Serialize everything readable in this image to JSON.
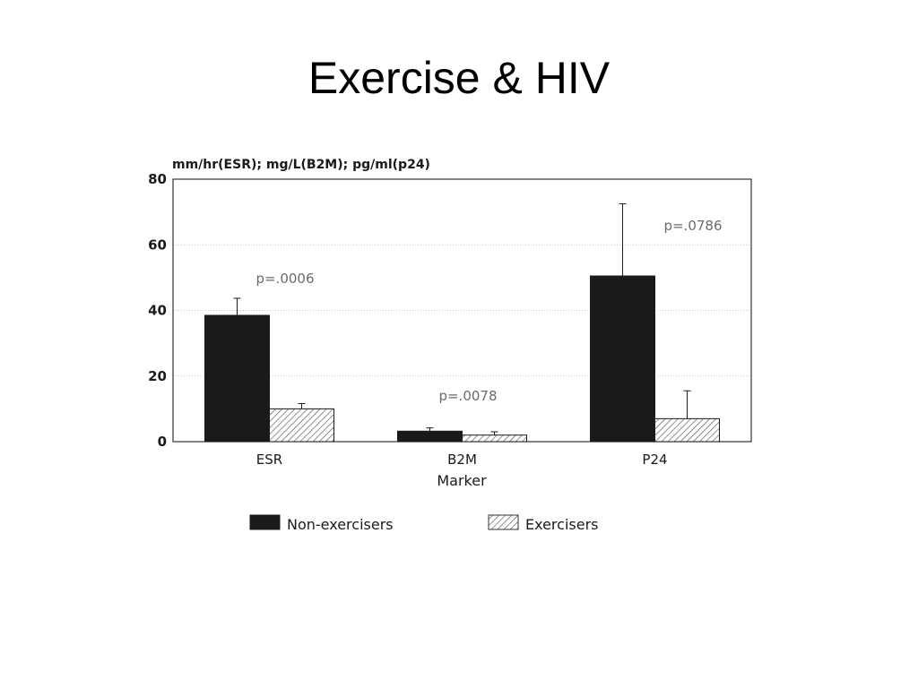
{
  "slide": {
    "title": "Exercise & HIV"
  },
  "chart_data": {
    "type": "bar",
    "ylabel": "mm/hr(ESR); mg/L(B2M); pg/ml(p24)",
    "xlabel": "Marker",
    "categories": [
      "ESR",
      "B2M",
      "P24"
    ],
    "ylim": [
      0,
      80
    ],
    "yticks": [
      0,
      20,
      40,
      60,
      80
    ],
    "grid": true,
    "legend_position": "bottom",
    "series": [
      {
        "name": "Non-exercisers",
        "values": [
          38.5,
          3.2,
          50.5
        ],
        "errors": [
          5.2,
          1.0,
          22.0
        ],
        "color": "#1a1a1a",
        "pattern": "solid"
      },
      {
        "name": "Exercisers",
        "values": [
          10.0,
          2.0,
          7.0
        ],
        "errors": [
          1.6,
          1.0,
          8.5
        ],
        "color": "#ffffff",
        "pattern": "hatched"
      }
    ],
    "annotations": [
      "p=.0006",
      "p=.0078",
      "p=.0786"
    ]
  }
}
